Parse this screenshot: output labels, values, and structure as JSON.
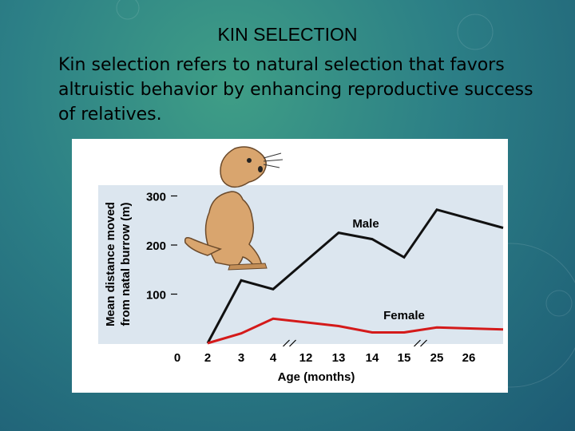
{
  "slide": {
    "title": "KIN SELECTION",
    "body": "Kin selection refers to natural selection that favors altruistic behavior by enhancing reproductive success of relatives."
  },
  "chart_data": {
    "type": "line",
    "categories": [
      "0",
      "2",
      "3",
      "4",
      "12",
      "13",
      "14",
      "15",
      "25",
      "26"
    ],
    "xlabel": "Age (months)",
    "ylabel": "Mean distance moved from natal burrow (m)",
    "ylim": [
      0,
      300
    ],
    "yticks": [
      100,
      200,
      300
    ],
    "grid": false,
    "axis_breaks": [
      "4-12",
      "15-25"
    ],
    "series": [
      {
        "name": "Male",
        "x": [
          "2",
          "3",
          "4",
          "13",
          "14",
          "15",
          "25"
        ],
        "values": [
          0,
          128,
          110,
          225,
          212,
          175,
          272
        ],
        "end_value": 235,
        "color": "#111111"
      },
      {
        "name": "Female",
        "x": [
          "2",
          "3",
          "4",
          "13",
          "14",
          "15",
          "25"
        ],
        "values": [
          0,
          20,
          50,
          35,
          22,
          22,
          32
        ],
        "end_value": 28,
        "color": "#d41a1a"
      }
    ],
    "plot_background": "#dce6ef"
  }
}
